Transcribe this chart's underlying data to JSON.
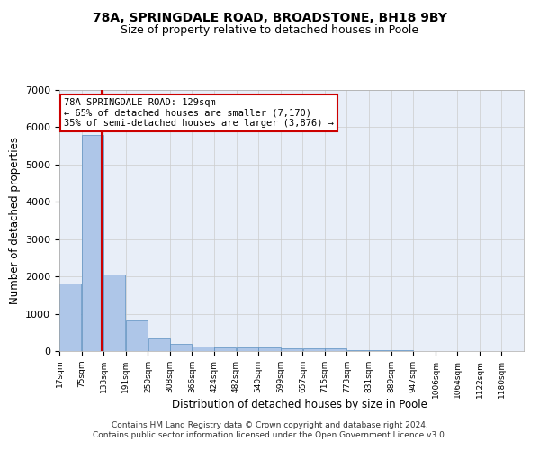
{
  "title": "78A, SPRINGDALE ROAD, BROADSTONE, BH18 9BY",
  "subtitle": "Size of property relative to detached houses in Poole",
  "xlabel": "Distribution of detached houses by size in Poole",
  "ylabel": "Number of detached properties",
  "footer_line1": "Contains HM Land Registry data © Crown copyright and database right 2024.",
  "footer_line2": "Contains public sector information licensed under the Open Government Licence v3.0.",
  "annotation_line1": "78A SPRINGDALE ROAD: 129sqm",
  "annotation_line2": "← 65% of detached houses are smaller (7,170)",
  "annotation_line3": "35% of semi-detached houses are larger (3,876) →",
  "property_size": 129,
  "bar_left_edges": [
    17,
    75,
    133,
    191,
    250,
    308,
    366,
    424,
    482,
    540,
    599,
    657,
    715,
    773,
    831,
    889,
    947,
    1006,
    1064,
    1122
  ],
  "bar_labels": [
    "17sqm",
    "75sqm",
    "133sqm",
    "191sqm",
    "250sqm",
    "308sqm",
    "366sqm",
    "424sqm",
    "482sqm",
    "540sqm",
    "599sqm",
    "657sqm",
    "715sqm",
    "773sqm",
    "831sqm",
    "889sqm",
    "947sqm",
    "1006sqm",
    "1064sqm",
    "1122sqm",
    "1180sqm"
  ],
  "bar_heights": [
    1800,
    5800,
    2050,
    820,
    340,
    190,
    115,
    100,
    95,
    90,
    80,
    75,
    65,
    30,
    20,
    15,
    10,
    8,
    5,
    5
  ],
  "bar_color": "#aec6e8",
  "bar_edge_color": "#5a8fc0",
  "vline_color": "#cc0000",
  "vline_x": 129,
  "ylim": [
    0,
    7000
  ],
  "yticks": [
    0,
    1000,
    2000,
    3000,
    4000,
    5000,
    6000,
    7000
  ],
  "grid_color": "#cccccc",
  "plot_bg_color": "#e8eef8",
  "annotation_box_color": "#ffffff",
  "annotation_box_edge": "#cc0000",
  "title_fontsize": 10,
  "subtitle_fontsize": 9,
  "footer_fontsize": 6.5
}
